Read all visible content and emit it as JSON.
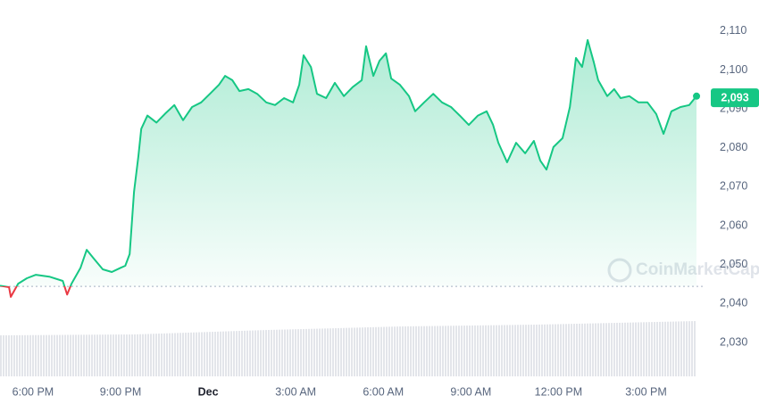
{
  "chart_data": {
    "type": "line",
    "x": [
      -7.13,
      -6.82,
      -6.76,
      -6.51,
      -6.21,
      -5.9,
      -5.44,
      -4.98,
      -4.83,
      -4.68,
      -4.37,
      -4.16,
      -3.91,
      -3.61,
      -3.3,
      -2.99,
      -2.84,
      -2.69,
      -2.54,
      -2.39,
      -2.29,
      -2.08,
      -1.77,
      -1.47,
      -1.16,
      -0.86,
      -0.55,
      -0.24,
      0.06,
      0.37,
      0.58,
      0.83,
      1.07,
      1.38,
      1.68,
      1.99,
      2.29,
      2.6,
      2.91,
      3.12,
      3.27,
      3.52,
      3.73,
      4.04,
      4.34,
      4.65,
      4.95,
      5.26,
      5.41,
      5.66,
      5.87,
      6.09,
      6.27,
      6.57,
      6.88,
      7.09,
      7.4,
      7.71,
      8.01,
      8.32,
      8.62,
      8.93,
      9.24,
      9.54,
      9.76,
      9.94,
      10.24,
      10.55,
      10.86,
      11.16,
      11.38,
      11.59,
      11.83,
      12.14,
      12.39,
      12.6,
      12.81,
      13.0,
      13.21,
      13.36,
      13.67,
      13.91,
      14.13,
      14.43,
      14.74,
      15.05,
      15.35,
      15.6,
      15.87,
      16.18,
      16.48,
      16.73
    ],
    "values": [
      2044.6,
      2044.2,
      2041.7,
      2045.1,
      2046.5,
      2047.4,
      2046.9,
      2045.8,
      2042.3,
      2045.1,
      2049.2,
      2053.8,
      2051.5,
      2048.8,
      2048.1,
      2049.2,
      2049.7,
      2052.7,
      2068.7,
      2077.9,
      2084.9,
      2088.3,
      2086.5,
      2088.8,
      2091.0,
      2087.1,
      2090.5,
      2091.7,
      2093.9,
      2096.2,
      2098.5,
      2097.4,
      2094.6,
      2095.1,
      2093.9,
      2091.7,
      2091.0,
      2092.8,
      2091.7,
      2096.2,
      2103.8,
      2100.8,
      2093.9,
      2092.8,
      2096.7,
      2093.3,
      2095.6,
      2097.4,
      2106.1,
      2098.5,
      2102.4,
      2104.3,
      2097.8,
      2096.2,
      2093.3,
      2089.4,
      2091.7,
      2093.9,
      2091.7,
      2090.5,
      2088.3,
      2085.9,
      2088.3,
      2089.4,
      2085.9,
      2081.3,
      2076.3,
      2081.3,
      2078.6,
      2081.8,
      2076.7,
      2074.4,
      2080.2,
      2082.5,
      2090.5,
      2103.1,
      2100.8,
      2107.7,
      2102.0,
      2097.4,
      2093.3,
      2095.1,
      2092.8,
      2093.3,
      2091.7,
      2091.7,
      2088.7,
      2083.6,
      2089.4,
      2090.5,
      2091.0,
      2093.3
    ],
    "baseline": 2044.4,
    "color": "#16c784",
    "down_color": "#ea3943",
    "current_price": {
      "value": 2093,
      "label": "2,093"
    },
    "watermark": "CoinMarketCap",
    "xlim": [
      -7.13,
      18.87
    ],
    "xticks": [
      {
        "value": -6,
        "label": "6:00 PM"
      },
      {
        "value": -3,
        "label": "9:00 PM"
      },
      {
        "value": 0,
        "label": "Dec"
      },
      {
        "value": 3,
        "label": "3:00 AM"
      },
      {
        "value": 6,
        "label": "6:00 AM"
      },
      {
        "value": 9,
        "label": "9:00 AM"
      },
      {
        "value": 12,
        "label": "12:00 PM"
      },
      {
        "value": 15,
        "label": "3:00 PM"
      }
    ],
    "ylim": [
      2020.6,
      2118
    ],
    "yticks": [
      {
        "value": 2030,
        "label": "2,030"
      },
      {
        "value": 2040,
        "label": "2,040"
      },
      {
        "value": 2050,
        "label": "2,050"
      },
      {
        "value": 2060,
        "label": "2,060"
      },
      {
        "value": 2070,
        "label": "2,070"
      },
      {
        "value": 2080,
        "label": "2,080"
      },
      {
        "value": 2090,
        "label": "2,090"
      },
      {
        "value": 2100,
        "label": "2,100"
      },
      {
        "value": 2110,
        "label": "2,110"
      }
    ]
  }
}
